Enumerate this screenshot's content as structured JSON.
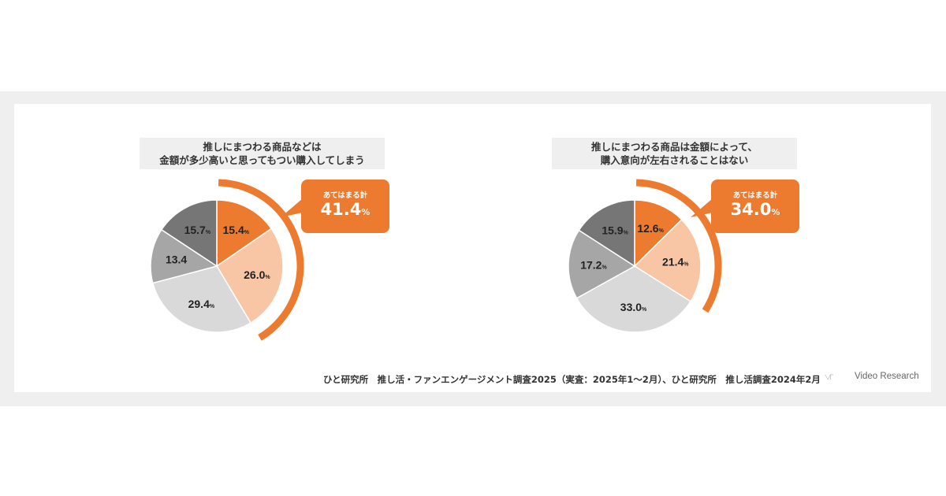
{
  "colors": {
    "orange": "#ec7b30",
    "peach": "#f8c6a5",
    "lightgray": "#d9d9d9",
    "midgray": "#a6a6a6",
    "darkgray": "#767676"
  },
  "chart_data": [
    {
      "type": "pie",
      "title_lines": [
        "推しにまつわる商品などは",
        "金額が多少高いと思ってもつい購入してしまう"
      ],
      "unit": "%",
      "slices": [
        {
          "label": "15.4",
          "value": 15.4,
          "unit": "%",
          "color": "#ec7b30"
        },
        {
          "label": "26.0",
          "value": 26.0,
          "unit": "%",
          "color": "#f8c6a5"
        },
        {
          "label": "29.4",
          "value": 29.4,
          "unit": "%",
          "color": "#d9d9d9"
        },
        {
          "label": "13.4",
          "value": 13.4,
          "unit": "",
          "color": "#a6a6a6"
        },
        {
          "label": "15.7",
          "value": 15.7,
          "unit": "%",
          "color": "#767676"
        }
      ],
      "arc_fraction": 0.414,
      "callout": {
        "label": "あてはまる計",
        "value": "41.4",
        "unit": "%"
      }
    },
    {
      "type": "pie",
      "title_lines": [
        "推しにまつわる商品は金額によって、",
        "購入意向が左右されることはない"
      ],
      "unit": "%",
      "slices": [
        {
          "label": "12.6",
          "value": 12.6,
          "unit": "%",
          "color": "#ec7b30"
        },
        {
          "label": "21.4",
          "value": 21.4,
          "unit": "%",
          "color": "#f8c6a5"
        },
        {
          "label": "33.0",
          "value": 33.0,
          "unit": "%",
          "color": "#d9d9d9"
        },
        {
          "label": "17.2",
          "value": 17.2,
          "unit": "%",
          "color": "#a6a6a6"
        },
        {
          "label": "15.9",
          "value": 15.9,
          "unit": "%",
          "color": "#767676"
        }
      ],
      "arc_fraction": 0.34,
      "callout": {
        "label": "あてはまる計",
        "value": "34.0",
        "unit": "%"
      }
    }
  ],
  "footer": {
    "source": "ひと研究所　推し活・ファンエンゲージメント調査2025（実査：2025年1～2月）、ひと研究所　推し活調査2024年2月",
    "logo_text": "Video Research",
    "logo_icon": "video-research-logo-icon"
  }
}
